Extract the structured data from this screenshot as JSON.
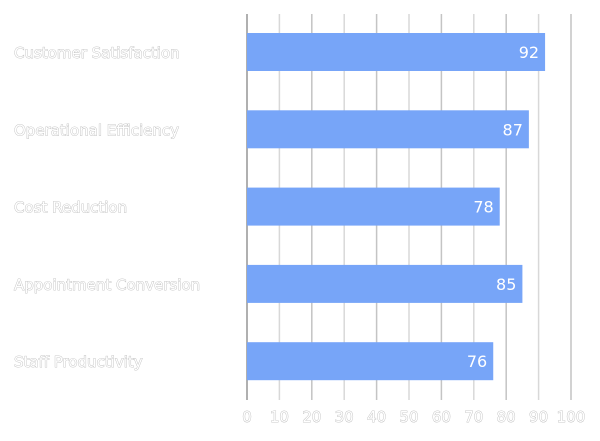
{
  "chart_data": {
    "type": "bar",
    "orientation": "horizontal",
    "categories": [
      "Customer Satisfaction",
      "Operational Efficiency",
      "Cost Reduction",
      "Appointment Conversion",
      "Staff Productivity"
    ],
    "values": [
      92,
      87,
      78,
      85,
      76
    ],
    "data_labels": [
      "92",
      "87",
      "78",
      "85",
      "76"
    ],
    "xlim": [
      0,
      100
    ],
    "x_ticks": [
      "0",
      "10",
      "20",
      "30",
      "40",
      "50",
      "60",
      "70",
      "80",
      "90",
      "100"
    ],
    "grid": true,
    "bar_color": "#77a5f8",
    "title": "",
    "xlabel": "",
    "ylabel": ""
  }
}
